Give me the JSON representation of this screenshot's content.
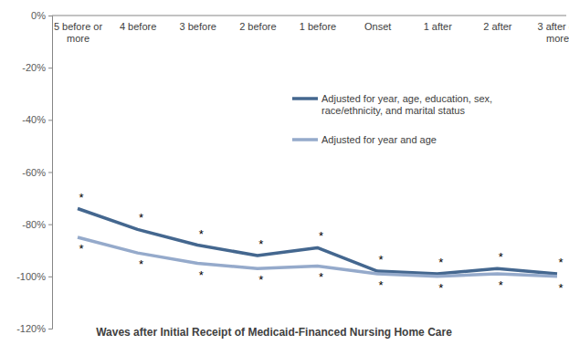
{
  "chart_data": {
    "type": "line",
    "x_label": "Waves after Initial Receipt of Medicaid-Financed Nursing Home Care",
    "categories": [
      "5 before or more",
      "4 before",
      "3 before",
      "2 before",
      "1 before",
      "Onset",
      "1 after",
      "2 after",
      "3 after or more"
    ],
    "series": [
      {
        "name": "Adjusted for year, age, education, sex, race/ethnicity, and marital status",
        "color": "#44678f",
        "values": [
          -74,
          -82,
          -88,
          -92,
          -89,
          -98,
          -99,
          -97,
          -99
        ],
        "annotations": [
          "*",
          "*",
          "*",
          "*",
          "*",
          "*",
          "*",
          "*",
          "*"
        ]
      },
      {
        "name": "Adjusted for year and age",
        "color": "#95aacb",
        "values": [
          -85,
          -91,
          -95,
          -97,
          -96,
          -99,
          -100,
          -99,
          -100
        ],
        "annotations": [
          "*",
          "*",
          "*",
          "*",
          "*",
          "*",
          "*",
          "*",
          "*"
        ]
      }
    ],
    "ylim": [
      -120,
      0
    ],
    "yticks": [
      {
        "value": 0,
        "label": "0%"
      },
      {
        "value": -20,
        "label": "-20%"
      },
      {
        "value": -40,
        "label": "-40%"
      },
      {
        "value": -60,
        "label": "-60%"
      },
      {
        "value": -80,
        "label": "-80%"
      },
      {
        "value": -100,
        "label": "-100%"
      },
      {
        "value": -120,
        "label": "-120%"
      }
    ],
    "grid": false,
    "legend": "right"
  }
}
